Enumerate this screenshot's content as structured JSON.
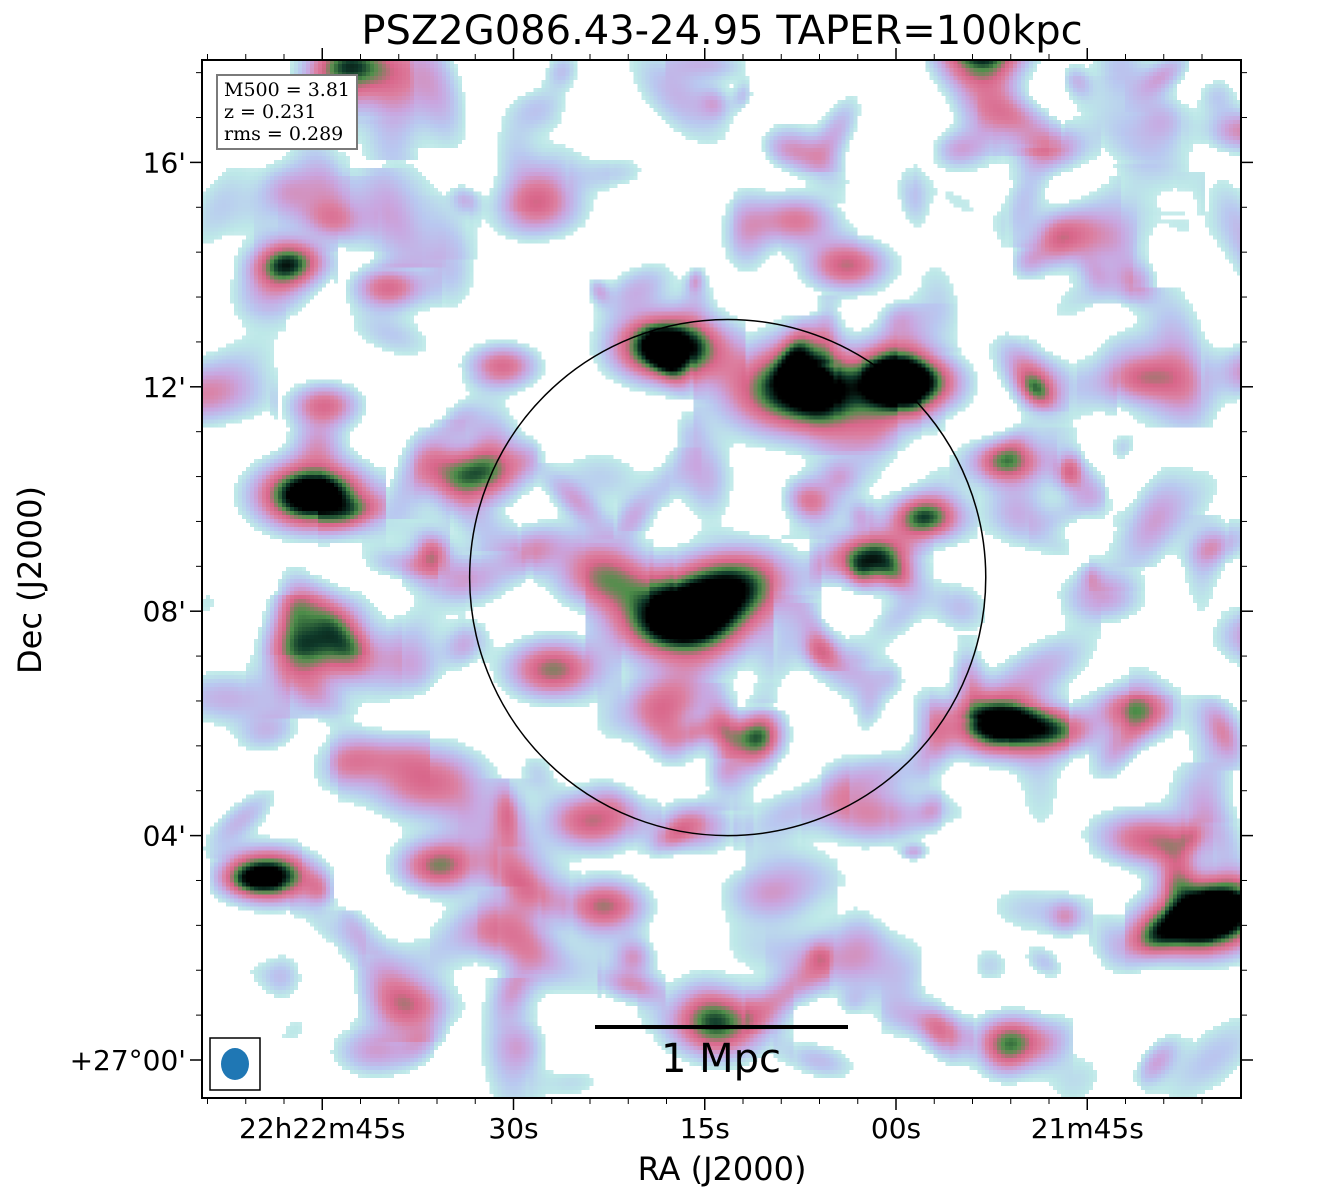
{
  "chart_data": {
    "type": "heatmap",
    "title": "PSZ2G086.43-24.95 TAPER=100kpc",
    "xlabel": "RA (J2000)",
    "ylabel": "Dec (J2000)",
    "x_ticks": [
      {
        "label": "22h22m45s",
        "ra_s": 45
      },
      {
        "label": "30s",
        "ra_s": 30
      },
      {
        "label": "15s",
        "ra_s": 15
      },
      {
        "label": "00s",
        "ra_s": 0
      },
      {
        "label": "21m45s",
        "ra_s": -15
      }
    ],
    "y_ticks": [
      {
        "label": "16'",
        "dec_arcmin": 16
      },
      {
        "label": "12'",
        "dec_arcmin": 12
      },
      {
        "label": "08'",
        "dec_arcmin": 8
      },
      {
        "label": "04'",
        "dec_arcmin": 4
      },
      {
        "label": "+27°00'",
        "dec_arcmin": 0
      }
    ],
    "info": {
      "m500": "M500 = 3.81",
      "z": "z = 0.231",
      "rms": "rms = 0.289"
    },
    "scalebar_label": "1 Mpc",
    "colormap": [
      "#ffffff",
      "#bde8e8",
      "#b9c8f0",
      "#c9a6e0",
      "#dc7fa0",
      "#d9668a",
      "#4f8f4a",
      "#0f3a2a",
      "#000000"
    ],
    "circle": {
      "ra_s": 13.2,
      "dec_arcmin": 8.6,
      "radius_arcmin": 4.6
    },
    "beam": {
      "color": "#1f77b4"
    },
    "sources": [
      {
        "ra_s": 17.0,
        "dec_arcmin": 7.9,
        "peak": 1.0,
        "size": 0.55
      },
      {
        "ra_s": 18.0,
        "dec_arcmin": 12.75,
        "peak": 0.95,
        "size": 0.45
      },
      {
        "ra_s": 8.0,
        "dec_arcmin": 12.0,
        "peak": 0.8,
        "size": 0.6
      },
      {
        "ra_s": -1.0,
        "dec_arcmin": 12.1,
        "peak": 0.85,
        "size": 0.4
      },
      {
        "ra_s": -8.0,
        "dec_arcmin": 6.0,
        "peak": 0.9,
        "size": 0.4
      },
      {
        "ra_s": -24.0,
        "dec_arcmin": 2.5,
        "peak": 0.92,
        "size": 0.45
      },
      {
        "ra_s": 46.0,
        "dec_arcmin": 10.1,
        "peak": 0.95,
        "size": 0.45
      },
      {
        "ra_s": 49.0,
        "dec_arcmin": 3.3,
        "peak": 0.75,
        "size": 0.35
      },
      {
        "ra_s": 48.0,
        "dec_arcmin": 14.2,
        "peak": 0.65,
        "size": 0.3
      },
      {
        "ra_s": 43.0,
        "dec_arcmin": 17.8,
        "peak": 0.6,
        "size": 0.35
      },
      {
        "ra_s": -7.0,
        "dec_arcmin": 18.0,
        "peak": 0.6,
        "size": 0.35
      },
      {
        "ra_s": 12.5,
        "dec_arcmin": 8.55,
        "peak": 0.6,
        "size": 0.5
      },
      {
        "ra_s": 2.0,
        "dec_arcmin": 9.0,
        "peak": 0.7,
        "size": 0.35
      },
      {
        "ra_s": -2.0,
        "dec_arcmin": 9.7,
        "peak": 0.6,
        "size": 0.3
      },
      {
        "ra_s": -8.5,
        "dec_arcmin": 10.7,
        "peak": 0.55,
        "size": 0.3
      },
      {
        "ra_s": 14.0,
        "dec_arcmin": 0.7,
        "peak": 0.6,
        "size": 0.45
      },
      {
        "ra_s": 27.0,
        "dec_arcmin": 7.0,
        "peak": 0.55,
        "size": 0.4
      },
      {
        "ra_s": 36.0,
        "dec_arcmin": 3.5,
        "peak": 0.55,
        "size": 0.35
      },
      {
        "ra_s": 37.0,
        "dec_arcmin": 5.0,
        "peak": 0.45,
        "size": 0.5
      },
      {
        "ra_s": 4.0,
        "dec_arcmin": 14.2,
        "peak": 0.5,
        "size": 0.35
      },
      {
        "ra_s": -31.0,
        "dec_arcmin": 9.4,
        "peak": 0.6,
        "size": 0.35
      },
      {
        "ra_s": -29.0,
        "dec_arcmin": 12.3,
        "peak": 0.5,
        "size": 0.35
      },
      {
        "ra_s": -19.0,
        "dec_arcmin": 12.2,
        "peak": 0.45,
        "size": 0.35
      },
      {
        "ra_s": 40.0,
        "dec_arcmin": 13.8,
        "peak": 0.45,
        "size": 0.3
      },
      {
        "ra_s": 45.0,
        "dec_arcmin": 11.7,
        "peak": 0.45,
        "size": 0.3
      },
      {
        "ra_s": 33.0,
        "dec_arcmin": 10.5,
        "peak": 0.5,
        "size": 0.35
      },
      {
        "ra_s": 31.0,
        "dec_arcmin": 12.4,
        "peak": 0.45,
        "size": 0.3
      },
      {
        "ra_s": 24.0,
        "dec_arcmin": 4.3,
        "peak": 0.5,
        "size": 0.4
      },
      {
        "ra_s": 23.0,
        "dec_arcmin": 2.8,
        "peak": 0.5,
        "size": 0.35
      },
      {
        "ra_s": 45.0,
        "dec_arcmin": 7.3,
        "peak": 0.45,
        "size": 0.45
      },
      {
        "ra_s": -26.0,
        "dec_arcmin": 2.9,
        "peak": 0.5,
        "size": 0.35
      },
      {
        "ra_s": -9.0,
        "dec_arcmin": 0.4,
        "peak": 0.45,
        "size": 0.35
      },
      {
        "ra_s": -29.0,
        "dec_arcmin": 7.6,
        "peak": 0.4,
        "size": 0.4
      },
      {
        "ra_s": -13.0,
        "dec_arcmin": 5.9,
        "peak": 0.45,
        "size": 0.3
      },
      {
        "ra_s": -18.0,
        "dec_arcmin": 6.3,
        "peak": 0.4,
        "size": 0.3
      },
      {
        "ra_s": 23.0,
        "dec_arcmin": 8.6,
        "peak": 0.45,
        "size": 0.4
      },
      {
        "ra_s": 18.0,
        "dec_arcmin": 6.4,
        "peak": 0.35,
        "size": 0.4
      },
      {
        "ra_s": 2.0,
        "dec_arcmin": 4.4,
        "peak": 0.35,
        "size": 0.4
      },
      {
        "ra_s": 8.0,
        "dec_arcmin": 15.0,
        "peak": 0.4,
        "size": 0.35
      },
      {
        "ra_s": 28.0,
        "dec_arcmin": 15.2,
        "peak": 0.3,
        "size": 0.4
      },
      {
        "ra_s": 16.0,
        "dec_arcmin": 4.2,
        "peak": 0.35,
        "size": 0.35
      },
      {
        "ra_s": 10.0,
        "dec_arcmin": 3.0,
        "peak": 0.3,
        "size": 0.4
      },
      {
        "ra_s": 12.0,
        "dec_arcmin": 5.8,
        "peak": 0.4,
        "size": 0.3
      },
      {
        "ra_s": -14.0,
        "dec_arcmin": 14.7,
        "peak": 0.3,
        "size": 0.35
      },
      {
        "ra_s": -20.0,
        "dec_arcmin": 3.9,
        "peak": 0.35,
        "size": 0.35
      },
      {
        "ra_s": 4.0,
        "dec_arcmin": 1.8,
        "peak": 0.3,
        "size": 0.45
      },
      {
        "ra_s": -16.0,
        "dec_arcmin": 8.3,
        "peak": 0.3,
        "size": 0.35
      },
      {
        "ra_s": -12.0,
        "dec_arcmin": 16.3,
        "peak": 0.35,
        "size": 0.3
      },
      {
        "ra_s": -27.0,
        "dec_arcmin": 16.6,
        "peak": 0.35,
        "size": 0.3
      },
      {
        "ra_s": 38.0,
        "dec_arcmin": 1.0,
        "peak": 0.35,
        "size": 0.35
      },
      {
        "ra_s": 34.0,
        "dec_arcmin": 8.6,
        "peak": 0.3,
        "size": 0.35
      },
      {
        "ra_s": 41.0,
        "dec_arcmin": 0.2,
        "peak": 0.3,
        "size": 0.35
      }
    ]
  }
}
